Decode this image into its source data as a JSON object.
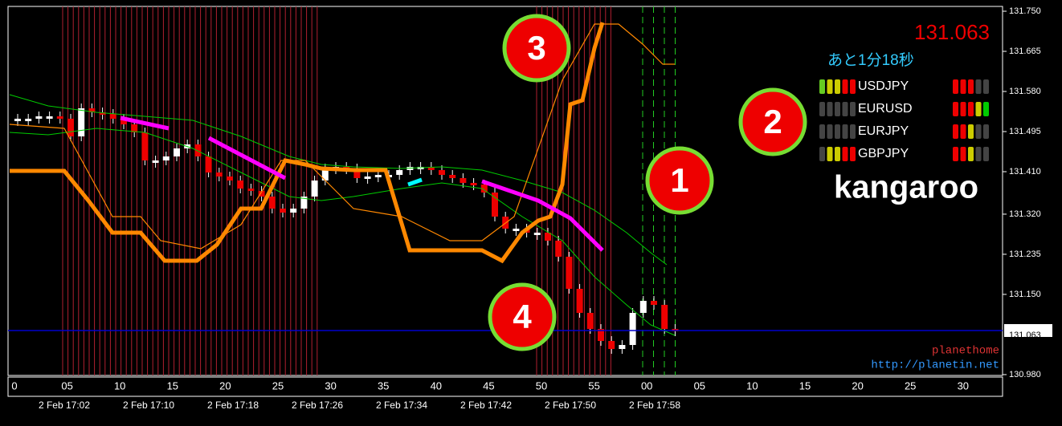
{
  "price_axis": {
    "ticks": [
      {
        "value": 131.75,
        "label": "131.750"
      },
      131.665,
      {
        "value": 131.58,
        "label": "131.580"
      },
      131.495,
      {
        "value": 131.41,
        "label": "131.410"
      },
      {
        "value": 131.32,
        "label": "131.320"
      },
      131.235,
      {
        "value": 131.15,
        "label": "131.150"
      },
      {
        "value": 130.98,
        "label": "130.980"
      }
    ],
    "current": {
      "value": 131.063,
      "label": "131.063"
    }
  },
  "time_axis": {
    "minutes": [
      "0",
      "05",
      "10",
      "15",
      "20",
      "25",
      "30",
      "35",
      "40",
      "45",
      "50",
      "55",
      "00",
      "05",
      "10",
      "15",
      "20",
      "25",
      "30"
    ],
    "dates": [
      "2 Feb 17:02",
      "2 Feb 17:10",
      "2 Feb 17:18",
      "2 Feb 17:26",
      "2 Feb 17:34",
      "2 Feb 17:42",
      "2 Feb 17:50",
      "2 Feb 17:58"
    ]
  },
  "panel": {
    "price": "131.063",
    "countdown": "あと1分18秒",
    "pairs": [
      "USDJPY",
      "EURUSD",
      "EURJPY",
      "GBPJPY"
    ],
    "brand": "kangaroo",
    "credit": "planethome",
    "url": "http://planetin.net"
  },
  "callouts": [
    "1",
    "2",
    "3",
    "4"
  ]
}
